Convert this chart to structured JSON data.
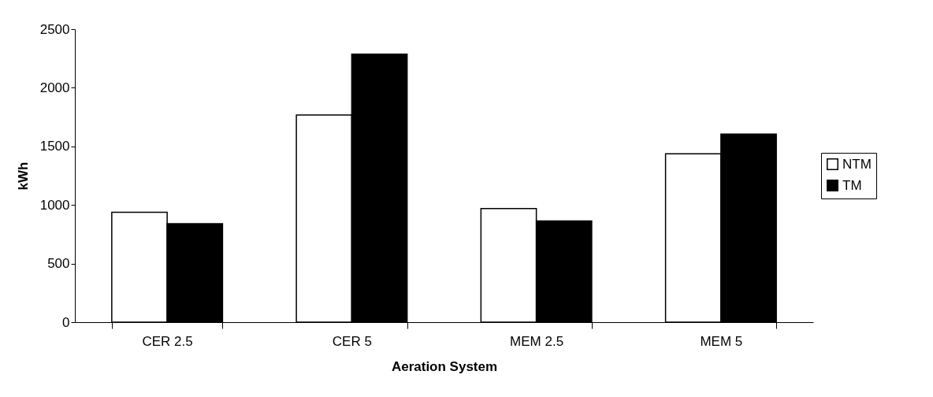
{
  "chart_data": {
    "type": "bar",
    "xlabel": "Aeration System",
    "ylabel": "kWh",
    "categories": [
      "CER 2.5",
      "CER 5",
      "MEM 2.5",
      "MEM 5"
    ],
    "series": [
      {
        "name": "NTM",
        "color": "#ffffff",
        "values": [
          937,
          1767,
          970,
          1437
        ]
      },
      {
        "name": "TM",
        "color": "#000000",
        "values": [
          840,
          2286,
          863,
          1605
        ]
      }
    ],
    "ylim": [
      0,
      2500
    ],
    "yticks": [
      0,
      500,
      1000,
      1500,
      2000,
      2500
    ],
    "grid": false,
    "legend": "right"
  }
}
